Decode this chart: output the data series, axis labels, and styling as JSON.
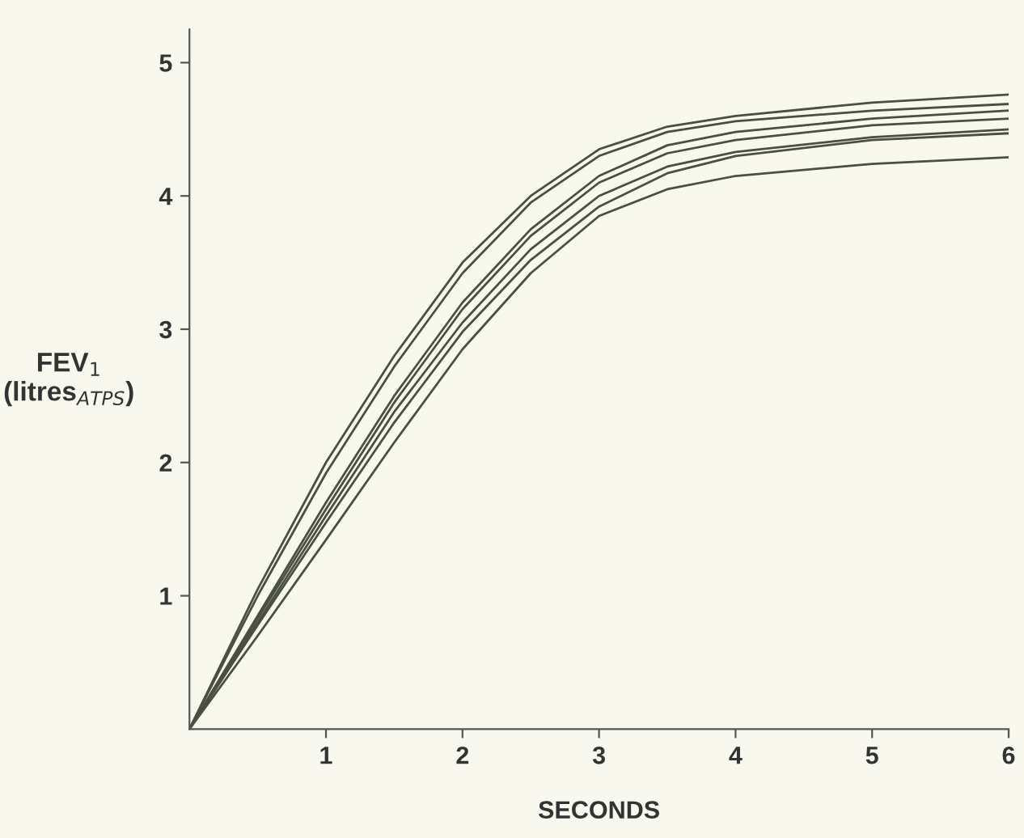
{
  "chart_data": {
    "type": "line",
    "xlabel": "SECONDS",
    "ylabel": "FEV$_{1}$\n(litres$_{ATPS}$)",
    "x": [
      0,
      0.5,
      1,
      1.5,
      2,
      2.5,
      3,
      3.5,
      4,
      5,
      6
    ],
    "xlim": [
      0,
      6
    ],
    "ylim": [
      0,
      5.25
    ],
    "xticks": [
      1,
      2,
      3,
      4,
      5,
      6
    ],
    "yticks": [
      1,
      2,
      3,
      4,
      5
    ],
    "grid": false,
    "legend": false,
    "marker": "none",
    "line_style": "solid",
    "series": [
      {
        "color": "#4a5040",
        "values": [
          0,
          1.05,
          2.0,
          2.8,
          3.5,
          4.0,
          4.35,
          4.52,
          4.6,
          4.7,
          4.76
        ]
      },
      {
        "color": "#4a5040",
        "values": [
          0,
          1.0,
          1.92,
          2.72,
          3.42,
          3.95,
          4.3,
          4.48,
          4.56,
          4.64,
          4.69
        ]
      },
      {
        "color": "#4a5040",
        "values": [
          0,
          0.85,
          1.7,
          2.5,
          3.2,
          3.75,
          4.15,
          4.38,
          4.48,
          4.58,
          4.64
        ]
      },
      {
        "color": "#4a5040",
        "values": [
          0,
          0.83,
          1.65,
          2.45,
          3.15,
          3.7,
          4.1,
          4.32,
          4.42,
          4.53,
          4.58
        ]
      },
      {
        "color": "#4a5040",
        "values": [
          0,
          0.8,
          1.6,
          2.38,
          3.05,
          3.6,
          4.0,
          4.22,
          4.33,
          4.44,
          4.5
        ]
      },
      {
        "color": "#4a5040",
        "values": [
          0,
          0.78,
          1.55,
          2.3,
          2.98,
          3.52,
          3.92,
          4.17,
          4.3,
          4.42,
          4.47
        ]
      },
      {
        "color": "#4a5040",
        "values": [
          0,
          0.7,
          1.42,
          2.15,
          2.85,
          3.42,
          3.85,
          4.05,
          4.15,
          4.24,
          4.29
        ]
      }
    ]
  }
}
